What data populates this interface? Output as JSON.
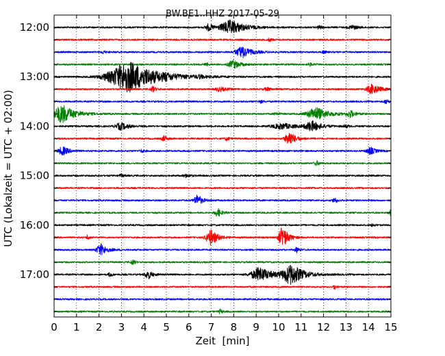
{
  "chart_data": {
    "type": "line",
    "title": "BW.BE1..HHZ 2017-05-29",
    "xlabel": "Zeit  [min]",
    "ylabel": "UTC (Lokalzeit = UTC + 02:00)",
    "xlim": [
      0,
      15
    ],
    "x_ticks": [
      "0",
      "1",
      "2",
      "3",
      "4",
      "5",
      "6",
      "7",
      "8",
      "9",
      "10",
      "11",
      "12",
      "13",
      "14",
      "15"
    ],
    "y_tick_labels": [
      "12:00",
      "13:00",
      "14:00",
      "15:00",
      "16:00",
      "17:00"
    ],
    "grid": "vertical dotted",
    "trace_interval_min": 15,
    "colors": [
      "#000000",
      "#ff0000",
      "#0000ff",
      "#008000"
    ],
    "traces": [
      {
        "start": "12:00",
        "color": "#000000",
        "events": [
          [
            7.9,
            0.9,
            10
          ],
          [
            6.9,
            0.3,
            5
          ],
          [
            13.3,
            0.35,
            3
          ],
          [
            11.8,
            0.15,
            3
          ]
        ]
      },
      {
        "start": "12:15",
        "color": "#ff0000",
        "events": [
          [
            9.6,
            0.18,
            2
          ]
        ]
      },
      {
        "start": "12:30",
        "color": "#0000ff",
        "events": [
          [
            8.4,
            0.6,
            8
          ],
          [
            2.2,
            0.2,
            2
          ],
          [
            12.0,
            0.15,
            2
          ]
        ]
      },
      {
        "start": "12:45",
        "color": "#008000",
        "events": [
          [
            8.0,
            0.45,
            6
          ],
          [
            11.4,
            0.2,
            2
          ],
          [
            6.8,
            0.15,
            2
          ]
        ]
      },
      {
        "start": "13:00",
        "color": "#000000",
        "events": [
          [
            3.4,
            1.8,
            22
          ],
          [
            6.5,
            0.2,
            2
          ],
          [
            5.0,
            0.15,
            2
          ]
        ]
      },
      {
        "start": "13:15",
        "color": "#ff0000",
        "events": [
          [
            14.2,
            0.5,
            7
          ],
          [
            7.4,
            0.4,
            3
          ],
          [
            9.5,
            0.3,
            2
          ],
          [
            4.4,
            0.2,
            4
          ]
        ]
      },
      {
        "start": "13:30",
        "color": "#0000ff",
        "events": [
          [
            14.8,
            0.2,
            3
          ],
          [
            9.2,
            0.15,
            2
          ]
        ]
      },
      {
        "start": "13:45",
        "color": "#008000",
        "events": [
          [
            0.4,
            0.8,
            13
          ],
          [
            11.7,
            0.8,
            9
          ],
          [
            13.2,
            0.3,
            5
          ],
          [
            9.9,
            0.2,
            2
          ]
        ]
      },
      {
        "start": "14:00",
        "color": "#000000",
        "events": [
          [
            3.0,
            0.5,
            5
          ],
          [
            11.5,
            0.6,
            7
          ],
          [
            10.2,
            0.9,
            4
          ],
          [
            13.0,
            0.2,
            2
          ]
        ]
      },
      {
        "start": "14:15",
        "color": "#ff0000",
        "events": [
          [
            10.5,
            0.4,
            10
          ],
          [
            4.9,
            0.2,
            4
          ],
          [
            7.7,
            0.15,
            3
          ]
        ]
      },
      {
        "start": "14:30",
        "color": "#0000ff",
        "events": [
          [
            0.4,
            0.4,
            6
          ],
          [
            14.1,
            0.35,
            5
          ],
          [
            3.9,
            0.15,
            2
          ]
        ]
      },
      {
        "start": "14:45",
        "color": "#008000",
        "events": [
          [
            11.7,
            0.2,
            3
          ]
        ]
      },
      {
        "start": "15:00",
        "color": "#000000",
        "events": [
          [
            5.9,
            0.3,
            2
          ],
          [
            3.0,
            0.2,
            2
          ]
        ]
      },
      {
        "start": "15:15",
        "color": "#ff0000",
        "events": []
      },
      {
        "start": "15:30",
        "color": "#0000ff",
        "events": [
          [
            6.4,
            0.3,
            8
          ],
          [
            12.5,
            0.15,
            5
          ]
        ]
      },
      {
        "start": "15:45",
        "color": "#008000",
        "events": [
          [
            7.3,
            0.25,
            6
          ],
          [
            15.0,
            0.15,
            4
          ]
        ]
      },
      {
        "start": "16:00",
        "color": "#000000",
        "events": [
          [
            14.2,
            0.15,
            2
          ]
        ]
      },
      {
        "start": "16:15",
        "color": "#ff0000",
        "events": [
          [
            10.2,
            0.35,
            16
          ],
          [
            7.0,
            0.45,
            11
          ],
          [
            1.5,
            0.1,
            4
          ]
        ]
      },
      {
        "start": "16:30",
        "color": "#0000ff",
        "events": [
          [
            2.1,
            0.4,
            8
          ],
          [
            10.8,
            0.15,
            4
          ]
        ]
      },
      {
        "start": "16:45",
        "color": "#008000",
        "events": [
          [
            3.5,
            0.15,
            4
          ]
        ]
      },
      {
        "start": "17:00",
        "color": "#000000",
        "events": [
          [
            9.2,
            0.8,
            10
          ],
          [
            10.6,
            0.8,
            14
          ],
          [
            4.2,
            0.3,
            6
          ],
          [
            2.5,
            0.15,
            3
          ]
        ]
      },
      {
        "start": "17:15",
        "color": "#ff0000",
        "events": [
          [
            12.5,
            0.1,
            4
          ]
        ]
      },
      {
        "start": "17:30",
        "color": "#0000ff",
        "events": []
      },
      {
        "start": "17:45",
        "color": "#008000",
        "events": [
          [
            7.4,
            0.15,
            3
          ]
        ]
      }
    ]
  }
}
